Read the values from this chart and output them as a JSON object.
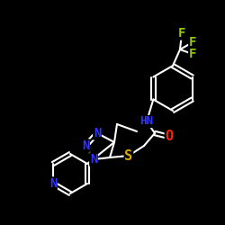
{
  "background_color": "#000000",
  "bond_color": "#ffffff",
  "bond_width": 1.5,
  "atom_colors": {
    "N": "#3333ff",
    "O": "#ff2200",
    "S": "#ddaa00",
    "F": "#99cc00",
    "C": "#ffffff",
    "H": "#ffffff"
  },
  "figsize": [
    2.5,
    2.5
  ],
  "dpi": 100
}
